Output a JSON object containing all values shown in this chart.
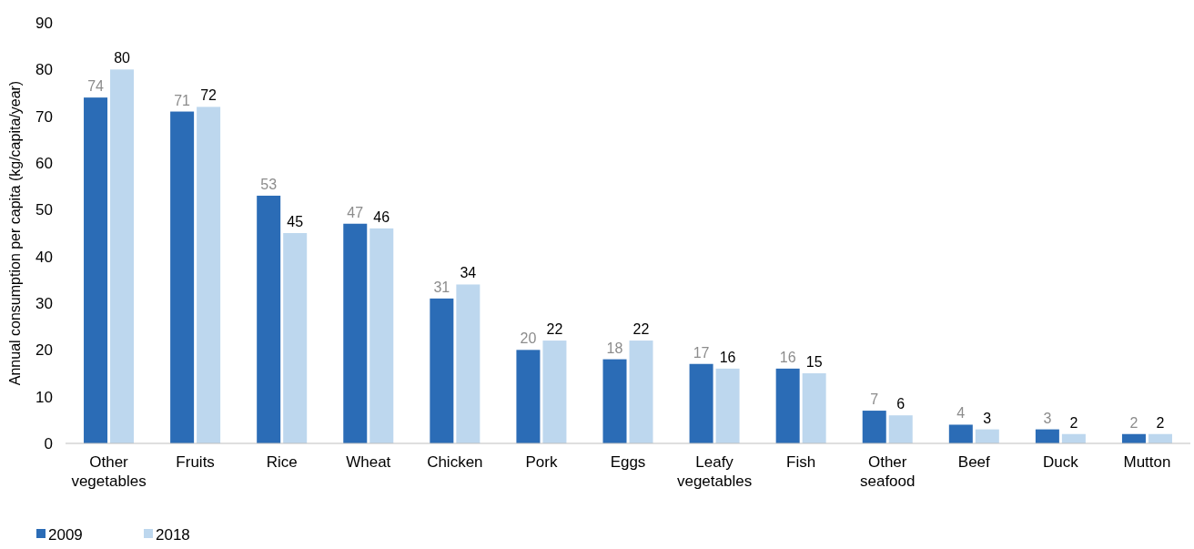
{
  "chart_data": {
    "type": "bar",
    "ylabel": "Annual consumption per capita (kg/capita/year)",
    "categories": [
      "Other vegetables",
      "Fruits",
      "Rice",
      "Wheat",
      "Chicken",
      "Pork",
      "Eggs",
      "Leafy vegetables",
      "Fish",
      "Other seafood",
      "Beef",
      "Duck",
      "Mutton"
    ],
    "series": [
      {
        "name": "2009",
        "color": "#2b6cb6",
        "values": [
          74,
          71,
          53,
          47,
          31,
          20,
          18,
          17,
          16,
          7,
          4,
          3,
          2
        ]
      },
      {
        "name": "2018",
        "color": "#bdd7ee",
        "values": [
          80,
          72,
          45,
          46,
          34,
          22,
          22,
          16,
          15,
          6,
          3,
          2,
          2
        ]
      }
    ],
    "ylim": [
      0,
      90
    ],
    "yticks": [
      0,
      10,
      20,
      30,
      40,
      50,
      60,
      70,
      80,
      90
    ],
    "grid": false,
    "legend": "bottom left",
    "data_labels": true
  }
}
